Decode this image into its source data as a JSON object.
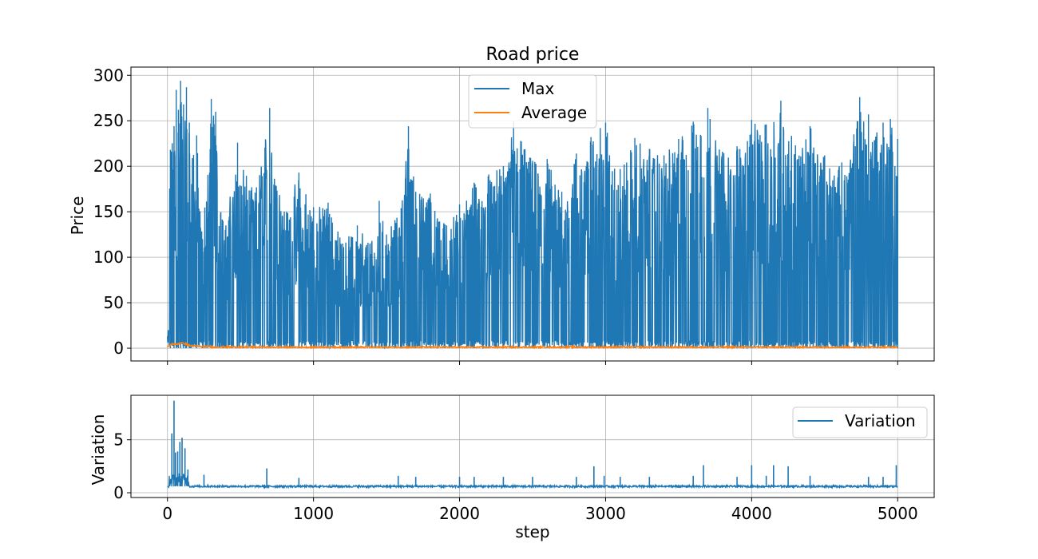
{
  "chart_data": [
    {
      "type": "line",
      "title": "Road price",
      "xlabel": "",
      "ylabel": "Price",
      "xlim": [
        -250,
        5250
      ],
      "ylim": [
        -14,
        309
      ],
      "xticks": [
        0,
        1000,
        2000,
        3000,
        4000,
        5000
      ],
      "xtick_labels_visible": false,
      "yticks": [
        0,
        50,
        100,
        150,
        200,
        250,
        300
      ],
      "ytick_labels": [
        "0",
        "50",
        "100",
        "150",
        "200",
        "250",
        "300"
      ],
      "grid": true,
      "legend": "top-center",
      "series": [
        {
          "name": "Max",
          "color": "#1f77b4",
          "x_range": [
            0,
            5000
          ],
          "sampled_peaks": {
            "x": [
              20,
              45,
              60,
              75,
              90,
              110,
              130,
              150,
              200,
              240,
              300,
              330,
              380,
              400,
              480,
              520,
              600,
              700,
              800,
              900,
              1000,
              1100,
              1200,
              1300,
              1400,
              1450,
              1500,
              1600,
              1650,
              1700,
              1800,
              1900,
              2000,
              2100,
              2200,
              2300,
              2370,
              2500,
              2600,
              2700,
              2800,
              2900,
              3000,
              3100,
              3200,
              3300,
              3400,
              3500,
              3600,
              3700,
              3800,
              3900,
              4000,
              4100,
              4200,
              4300,
              4400,
              4500,
              4600,
              4700,
              4740,
              4800,
              4900,
              4950,
              5000
            ],
            "y": [
              218,
              244,
              284,
              262,
              294,
              268,
              287,
              248,
              234,
              120,
              274,
              260,
              140,
              135,
              226,
              196,
              171,
              264,
              150,
              193,
              155,
              160,
              115,
              135,
              118,
              162,
              125,
              154,
              244,
              172,
              170,
              136,
              158,
              182,
              191,
              200,
              249,
              206,
              208,
              172,
              214,
              232,
              248,
              197,
              231,
              219,
              212,
              230,
              249,
              264,
              216,
              222,
              251,
              246,
              272,
              223,
              244,
              212,
              200,
              235,
              276,
              257,
              248,
              252,
              230
            ]
          },
          "typical_low": 0
        },
        {
          "name": "Average",
          "color": "#ff7f0e",
          "x_range": [
            0,
            5000
          ],
          "sampled": {
            "x": [
              0,
              30,
              60,
              90,
              120,
              150,
              200,
              300,
              500,
              1000,
              2000,
              3000,
              4000,
              5000
            ],
            "y": [
              1,
              5,
              4,
              6,
              5,
              3,
              2,
              1.5,
              1.3,
              1.2,
              1.2,
              1.3,
              1.3,
              1.3
            ]
          }
        }
      ]
    },
    {
      "type": "line",
      "title": "",
      "xlabel": "step",
      "ylabel": "Variation",
      "xlim": [
        -250,
        5250
      ],
      "ylim": [
        -0.45,
        9.2
      ],
      "xticks": [
        0,
        1000,
        2000,
        3000,
        4000,
        5000
      ],
      "xtick_labels": [
        "0",
        "1000",
        "2000",
        "3000",
        "4000",
        "5000"
      ],
      "yticks": [
        0,
        5
      ],
      "ytick_labels": [
        "0",
        "5"
      ],
      "grid": true,
      "legend": "top-right",
      "series": [
        {
          "name": "Variation",
          "color": "#1f77b4",
          "baseline": 0.6,
          "spikes": {
            "x": [
              30,
              45,
              55,
              70,
              85,
              100,
              120,
              140,
              250,
              680,
              900,
              1580,
              1700,
              2000,
              2100,
              2300,
              2500,
              2800,
              2920,
              2990,
              3100,
              3300,
              3600,
              3670,
              3900,
              4000,
              4100,
              4150,
              4250,
              4400,
              4800,
              4900,
              4990
            ],
            "y": [
              5.6,
              8.7,
              3.8,
              3.9,
              4.8,
              5.2,
              4.2,
              2.2,
              1.7,
              2.3,
              1.4,
              1.6,
              1.5,
              1.5,
              1.5,
              1.5,
              1.5,
              1.5,
              2.5,
              1.6,
              1.5,
              1.5,
              1.6,
              2.6,
              1.5,
              2.6,
              1.6,
              2.6,
              2.5,
              1.6,
              1.5,
              1.5,
              2.6
            ]
          }
        }
      ]
    }
  ]
}
